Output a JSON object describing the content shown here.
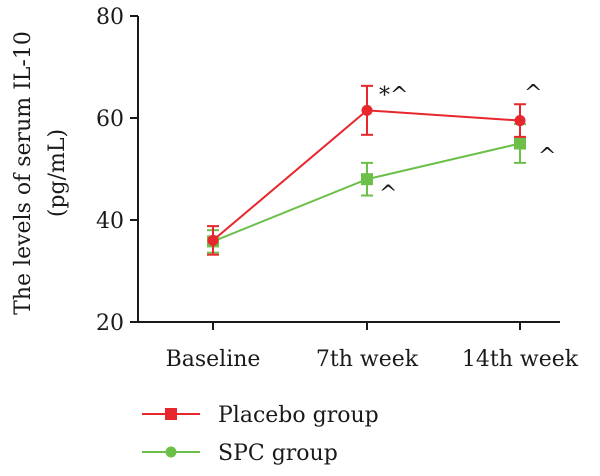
{
  "chart_data": {
    "type": "line",
    "categories": [
      "Baseline",
      "7th week",
      "14th week"
    ],
    "ylabel_line1": "The levels of serum IL-10",
    "ylabel_line2": "(pg/mL)",
    "ylim": [
      20,
      80
    ],
    "yticks": [
      20,
      40,
      60,
      80
    ],
    "grid": false,
    "legend_position": "bottom-left",
    "series": [
      {
        "name": "Placebo group",
        "color": "#e8262d",
        "marker": "circle",
        "legend_marker": "square",
        "values": [
          36,
          61.5,
          59.5
        ],
        "errors": [
          2.8,
          4.8,
          3.2
        ],
        "annotations": [
          "",
          "*^",
          "^"
        ]
      },
      {
        "name": "SPC group",
        "color": "#6cc04a",
        "marker": "square",
        "legend_marker": "circle",
        "values": [
          35.8,
          48,
          55
        ],
        "errors": [
          2.2,
          3.2,
          3.8
        ],
        "annotations": [
          "",
          "^",
          "^"
        ]
      }
    ]
  }
}
